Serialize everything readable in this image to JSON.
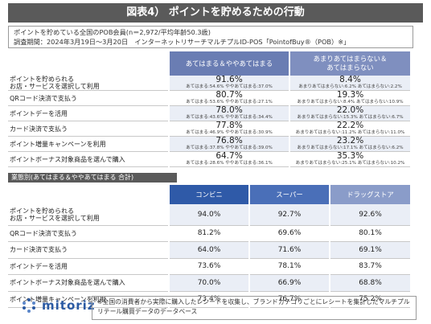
{
  "title": "図表4） ポイントを貯めるための行動",
  "info": {
    "line1": "ポイントを貯めている全国のPOB会員(n＝2,972/平均年齢50.3歳)",
    "line2": "調査期間：2024年3月19日～3月20日　インターネットリサーチマルチプルID-POS「PointofBuy®（POB）※」"
  },
  "top_table": {
    "col1_header": "あてはまる＆ややあてはまる",
    "col2_header": "あまりあてはまらない＆\nあてはまらない",
    "rows": [
      {
        "label": "ポイントを貯められる\nお店・サービスを選択して利用",
        "pos": "91.6%",
        "pos_sub": "あてはまる:54.6%  ややあてはまる:37.0%",
        "neg": "8.4%",
        "neg_sub": "あまりあてはまらない:6.2%  あてはまらない:2.2%"
      },
      {
        "label": "QRコード決済で支払う",
        "pos": "80.7%",
        "pos_sub": "あてはまる:53.6%  ややあてはまる:27.1%",
        "neg": "19.3%",
        "neg_sub": "あまりあてはまらない:8.4%  あてはまらない:10.9%"
      },
      {
        "label": "ポイントデーを活用",
        "pos": "78.0%",
        "pos_sub": "あてはまる:43.6%  ややあてはまる:34.4%",
        "neg": "22.0%",
        "neg_sub": "あまりあてはまらない:15.3%  あてはまらない:6.7%"
      },
      {
        "label": "カード決済で支払う",
        "pos": "77.8%",
        "pos_sub": "あてはまる:46.9%  ややあてはまる:30.9%",
        "neg": "22.2%",
        "neg_sub": "あまりあてはまらない:11.2%  あてはまらない:11.0%"
      },
      {
        "label": "ポイント増量キャンペーンを利用",
        "pos": "76.8%",
        "pos_sub": "あてはまる:37.8%  ややあてはまる:39.0%",
        "neg": "23.2%",
        "neg_sub": "あまりあてはまらない:17.1%  あてはまらない:6.2%"
      },
      {
        "label": "ポイントボーナス対象商品を選んで購入",
        "pos": "64.7%",
        "pos_sub": "あてはまる:28.6%  ややあてはまる:36.1%",
        "neg": "35.3%",
        "neg_sub": "あまりあてはまらない:25.1%  あてはまらない:10.2%"
      }
    ]
  },
  "segment_label": "業態別(あてはまる＆ややあてはまる 合計)",
  "bottom_table": {
    "headers": [
      "コンビニ",
      "スーパー",
      "ドラッグストア"
    ],
    "rows": [
      {
        "label": "ポイントを貯められる\nお店・サービスを選択して利用",
        "values": [
          "94.0%",
          "92.7%",
          "92.6%"
        ]
      },
      {
        "label": "QRコード決済で支払う",
        "values": [
          "81.2%",
          "69.6%",
          "80.1%"
        ]
      },
      {
        "label": "カード決済で支払う",
        "values": [
          "64.0%",
          "71.6%",
          "69.1%"
        ]
      },
      {
        "label": "ポイントデーを活用",
        "values": [
          "73.6%",
          "78.1%",
          "83.7%"
        ]
      },
      {
        "label": "ポイントボーナス対象商品を選んで購入",
        "values": [
          "70.0%",
          "66.9%",
          "68.8%"
        ]
      },
      {
        "label": "ポイント増量キャンペーンを利用",
        "values": [
          "73.4%",
          "76.7%",
          "75.2%"
        ]
      }
    ]
  },
  "footer": {
    "logo_text": "mitoriz",
    "note": "※全国の消費者から実際に購入したレシートを収集し、ブランドカテゴリごとにレシートを集計したマルチプルリテール購買データのデータベース"
  },
  "colors": {
    "title_bg": "#5a5a5a",
    "accent_blue": "#2f5aa8",
    "header_blue_light": "#8a9cc9",
    "row_tint": "#eaeef6"
  }
}
